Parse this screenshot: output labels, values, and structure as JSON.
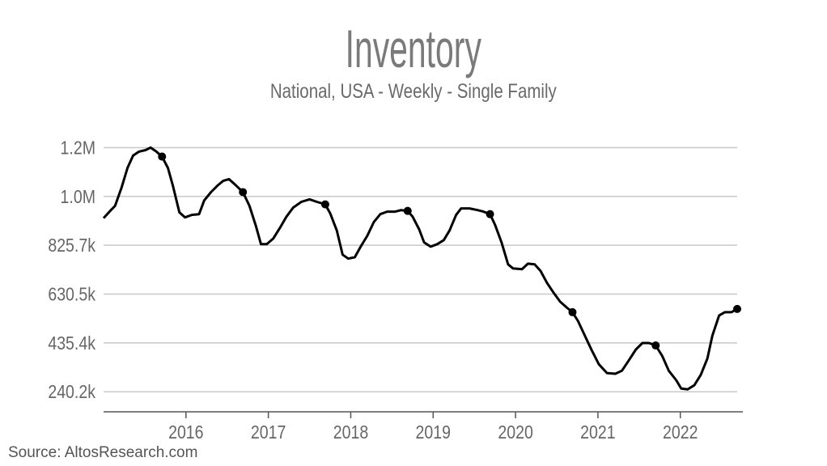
{
  "chart_data": {
    "type": "line",
    "title": "Inventory",
    "subtitle": "National, USA - Weekly - Single Family",
    "source": "Source: AltosResearch.com",
    "xlabel": "",
    "ylabel": "",
    "xlim": [
      "2015-01-01",
      "2022-10-05"
    ],
    "ylim": [
      160000,
      1240000
    ],
    "grid": "horizontal",
    "x_ticks": [
      {
        "date": "2016-01-01",
        "label": "2016"
      },
      {
        "date": "2017-01-01",
        "label": "2017"
      },
      {
        "date": "2018-01-01",
        "label": "2018"
      },
      {
        "date": "2019-01-01",
        "label": "2019"
      },
      {
        "date": "2020-01-01",
        "label": "2020"
      },
      {
        "date": "2021-01-01",
        "label": "2021"
      },
      {
        "date": "2022-01-01",
        "label": "2022"
      }
    ],
    "y_ticks": [
      {
        "value": 240200,
        "label": "240.2k"
      },
      {
        "value": 435350,
        "label": "435.4k"
      },
      {
        "value": 630500,
        "label": "630.5k"
      },
      {
        "value": 825650,
        "label": "825.7k"
      },
      {
        "value": 1020800,
        "label": "1.0M"
      },
      {
        "value": 1215950,
        "label": "1.2M"
      }
    ],
    "colors": {
      "line": "#000000",
      "grid": "#c8c8c8",
      "axis": "#555555",
      "title": "#7a7a7a"
    },
    "series": [
      {
        "points": [
          [
            "2015-01-01",
            934000
          ],
          [
            "2015-01-27",
            960000
          ],
          [
            "2015-02-21",
            983000
          ],
          [
            "2015-03-22",
            1057000
          ],
          [
            "2015-04-17",
            1135000
          ],
          [
            "2015-05-12",
            1184000
          ],
          [
            "2015-06-07",
            1200000
          ],
          [
            "2015-07-06",
            1206000
          ],
          [
            "2015-07-28",
            1216000
          ],
          [
            "2015-08-23",
            1200000
          ],
          [
            "2015-09-17",
            1180000
          ],
          [
            "2015-10-13",
            1135000
          ],
          [
            "2015-11-04",
            1064000
          ],
          [
            "2015-12-03",
            957000
          ],
          [
            "2015-12-28",
            937000
          ],
          [
            "2016-01-27",
            947000
          ],
          [
            "2016-02-28",
            950000
          ],
          [
            "2016-03-22",
            1005000
          ],
          [
            "2016-04-21",
            1038000
          ],
          [
            "2016-05-20",
            1064000
          ],
          [
            "2016-06-14",
            1083000
          ],
          [
            "2016-07-10",
            1090000
          ],
          [
            "2016-08-04",
            1070000
          ],
          [
            "2016-09-10",
            1038000
          ],
          [
            "2016-10-09",
            983000
          ],
          [
            "2016-11-07",
            902000
          ],
          [
            "2016-11-29",
            830000
          ],
          [
            "2016-12-25",
            830000
          ],
          [
            "2017-01-23",
            853000
          ],
          [
            "2017-02-21",
            895000
          ],
          [
            "2017-03-22",
            940000
          ],
          [
            "2017-04-21",
            976000
          ],
          [
            "2017-05-27",
            999000
          ],
          [
            "2017-07-03",
            1009000
          ],
          [
            "2017-08-04",
            999000
          ],
          [
            "2017-09-10",
            989000
          ],
          [
            "2017-10-02",
            953000
          ],
          [
            "2017-10-31",
            885000
          ],
          [
            "2017-11-26",
            788000
          ],
          [
            "2017-12-21",
            772000
          ],
          [
            "2018-01-19",
            778000
          ],
          [
            "2018-02-14",
            820000
          ],
          [
            "2018-03-15",
            863000
          ],
          [
            "2018-04-13",
            918000
          ],
          [
            "2018-05-12",
            950000
          ],
          [
            "2018-06-11",
            960000
          ],
          [
            "2018-07-17",
            960000
          ],
          [
            "2018-08-12",
            966000
          ],
          [
            "2018-09-10",
            963000
          ],
          [
            "2018-10-02",
            940000
          ],
          [
            "2018-10-31",
            889000
          ],
          [
            "2018-11-22",
            837000
          ],
          [
            "2018-12-21",
            820000
          ],
          [
            "2019-01-19",
            830000
          ],
          [
            "2019-02-17",
            846000
          ],
          [
            "2019-03-15",
            885000
          ],
          [
            "2019-04-13",
            947000
          ],
          [
            "2019-05-05",
            973000
          ],
          [
            "2019-06-11",
            973000
          ],
          [
            "2019-07-17",
            966000
          ],
          [
            "2019-08-12",
            960000
          ],
          [
            "2019-09-10",
            950000
          ],
          [
            "2019-10-02",
            908000
          ],
          [
            "2019-10-31",
            837000
          ],
          [
            "2019-11-29",
            749000
          ],
          [
            "2019-12-21",
            733000
          ],
          [
            "2020-01-30",
            730000
          ],
          [
            "2020-02-25",
            752000
          ],
          [
            "2020-03-26",
            749000
          ],
          [
            "2020-04-21",
            723000
          ],
          [
            "2020-05-20",
            675000
          ],
          [
            "2020-06-18",
            636000
          ],
          [
            "2020-07-17",
            600000
          ],
          [
            "2020-08-15",
            577000
          ],
          [
            "2020-09-10",
            558000
          ],
          [
            "2020-10-05",
            522000
          ],
          [
            "2020-11-04",
            464000
          ],
          [
            "2020-12-03",
            409000
          ],
          [
            "2021-01-05",
            350000
          ],
          [
            "2021-02-10",
            315000
          ],
          [
            "2021-03-19",
            312000
          ],
          [
            "2021-04-17",
            324000
          ],
          [
            "2021-05-16",
            363000
          ],
          [
            "2021-06-18",
            409000
          ],
          [
            "2021-07-17",
            435000
          ],
          [
            "2021-08-15",
            435000
          ],
          [
            "2021-09-14",
            425000
          ],
          [
            "2021-10-13",
            383000
          ],
          [
            "2021-11-11",
            324000
          ],
          [
            "2021-12-14",
            286000
          ],
          [
            "2022-01-05",
            253000
          ],
          [
            "2022-02-03",
            250000
          ],
          [
            "2022-03-04",
            266000
          ],
          [
            "2022-04-02",
            308000
          ],
          [
            "2022-05-01",
            373000
          ],
          [
            "2022-05-23",
            464000
          ],
          [
            "2022-06-22",
            545000
          ],
          [
            "2022-07-17",
            558000
          ],
          [
            "2022-08-15",
            558000
          ],
          [
            "2022-09-10",
            571000
          ]
        ],
        "markers": [
          [
            "2015-09-17",
            1180000
          ],
          [
            "2016-09-10",
            1038000
          ],
          [
            "2017-09-10",
            989000
          ],
          [
            "2018-09-10",
            963000
          ],
          [
            "2019-09-10",
            950000
          ],
          [
            "2020-09-10",
            558000
          ],
          [
            "2021-09-14",
            425000
          ],
          [
            "2022-09-10",
            571000
          ]
        ]
      }
    ]
  }
}
